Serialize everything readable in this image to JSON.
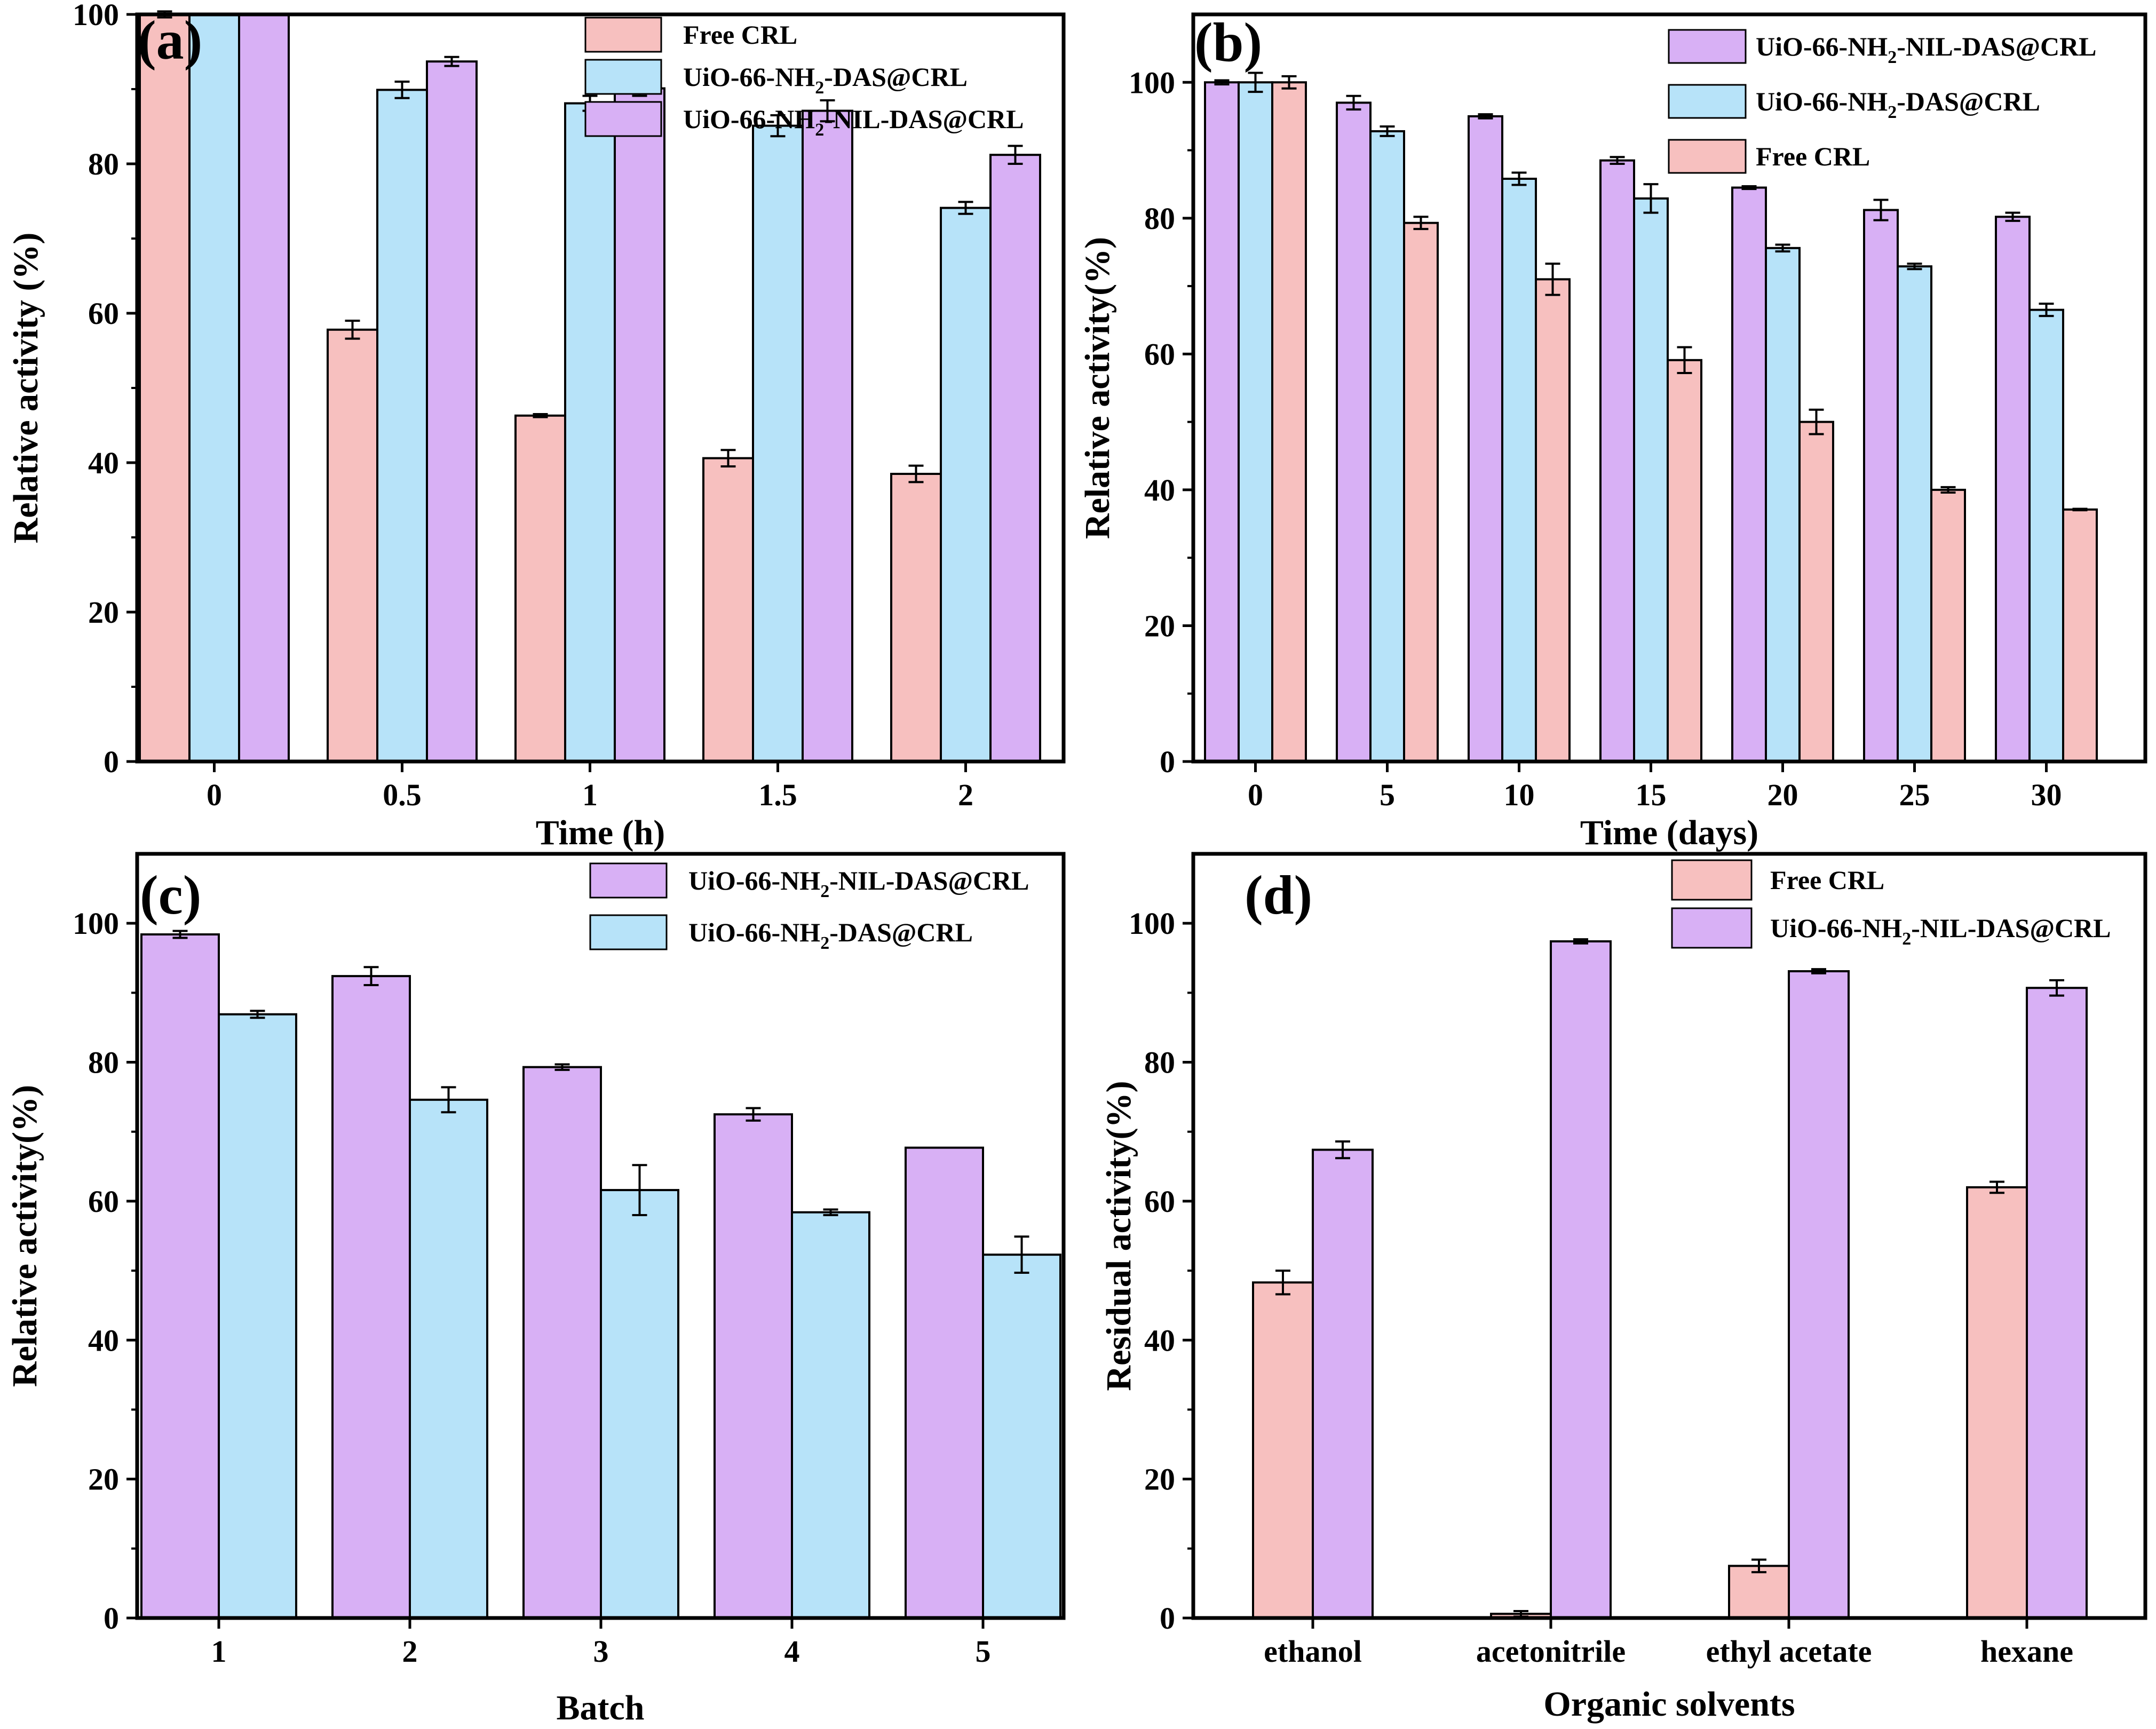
{
  "colors": {
    "Free CRL": "#f7c0bf",
    "UiO-66-NH2-DAS@CRL": "#b7e3f9",
    "UiO-66-NH2-NIL-DAS@CRL": "#d8b0f5"
  },
  "chart_data": [
    {
      "panel_label": "(a)",
      "type": "bar",
      "xlabel": "Time (h)",
      "ylabel": "Relative activity (%)",
      "ylim": [
        0,
        100
      ],
      "yticks": [
        "0",
        "20",
        "40",
        "60",
        "80",
        "100"
      ],
      "categories": [
        "0",
        "0.5",
        "1",
        "1.5",
        "2"
      ],
      "legend_position": "top-right",
      "series": [
        {
          "name": "Free CRL",
          "name_base": "Free CRL",
          "name_sub": "",
          "name_rest": "",
          "color_key": "Free CRL",
          "values": [
            100,
            57.8,
            46.3,
            40.6,
            38.5
          ],
          "errors": [
            0.4,
            1.2,
            0.2,
            1.1,
            1.1
          ]
        },
        {
          "name": "UiO-66-NH2-DAS@CRL",
          "name_base": "UiO-66-NH",
          "name_sub": "2",
          "name_rest": "-DAS@CRL",
          "color_key": "UiO-66-NH2-DAS@CRL",
          "values": [
            100,
            89.9,
            88.1,
            85.1,
            74.1
          ],
          "errors": [
            0,
            1.1,
            1.0,
            1.4,
            0.8
          ]
        },
        {
          "name": "UiO-66-NH2-NIL-DAS@CRL",
          "name_base": "UiO-66-NH",
          "name_sub": "2",
          "name_rest": "-NIL-DAS@CRL",
          "color_key": "UiO-66-NH2-NIL-DAS@CRL",
          "values": [
            100,
            93.7,
            90.1,
            87.1,
            81.2
          ],
          "errors": [
            0,
            0.6,
            1.0,
            1.4,
            1.2
          ]
        }
      ]
    },
    {
      "panel_label": "(b)",
      "type": "bar",
      "xlabel": "Time (days)",
      "ylabel": "Relative activity(%)",
      "ylim": [
        0,
        110
      ],
      "yticks": [
        "0",
        "20",
        "40",
        "60",
        "80",
        "100"
      ],
      "categories": [
        "0",
        "5",
        "10",
        "15",
        "20",
        "25",
        "30"
      ],
      "legend_position": "top-right",
      "series": [
        {
          "name": "UiO-66-NH2-NIL-DAS@CRL",
          "name_base": "UiO-66-NH",
          "name_sub": "2",
          "name_rest": "-NIL-DAS@CRL",
          "color_key": "UiO-66-NH2-NIL-DAS@CRL",
          "values": [
            100,
            97.0,
            95.0,
            88.5,
            84.5,
            81.2,
            80.2
          ],
          "errors": [
            0.3,
            1.0,
            0.3,
            0.5,
            0.2,
            1.5,
            0.6
          ]
        },
        {
          "name": "UiO-66-NH2-DAS@CRL",
          "name_base": "UiO-66-NH",
          "name_sub": "2",
          "name_rest": "-DAS@CRL",
          "color_key": "UiO-66-NH2-DAS@CRL",
          "values": [
            100,
            92.8,
            85.8,
            82.9,
            75.6,
            72.9,
            66.5
          ],
          "errors": [
            1.4,
            0.7,
            0.9,
            2.1,
            0.5,
            0.4,
            0.9
          ]
        },
        {
          "name": "Free CRL",
          "name_base": "Free CRL",
          "name_sub": "",
          "name_rest": "",
          "color_key": "Free CRL",
          "values": [
            100,
            79.3,
            71.0,
            59.1,
            50.0,
            40.0,
            37.1
          ],
          "errors": [
            0.9,
            0.9,
            2.3,
            1.9,
            1.8,
            0.4,
            0.1
          ]
        }
      ]
    },
    {
      "panel_label": "(c)",
      "type": "bar",
      "xlabel": "Batch",
      "ylabel": "Relative activity(%)",
      "ylim": [
        0,
        110
      ],
      "yticks": [
        "0",
        "20",
        "40",
        "60",
        "80",
        "100"
      ],
      "categories": [
        "1",
        "2",
        "3",
        "4",
        "5"
      ],
      "legend_position": "top-right",
      "series": [
        {
          "name": "UiO-66-NH2-NIL-DAS@CRL",
          "name_base": "UiO-66-NH",
          "name_sub": "2",
          "name_rest": "-NIL-DAS@CRL",
          "color_key": "UiO-66-NH2-NIL-DAS@CRL",
          "values": [
            98.4,
            92.4,
            79.3,
            72.5,
            67.7
          ],
          "errors": [
            0.5,
            1.3,
            0.4,
            0.9,
            0
          ]
        },
        {
          "name": "UiO-66-NH2-DAS@CRL",
          "name_base": "UiO-66-NH",
          "name_sub": "2",
          "name_rest": "-DAS@CRL",
          "color_key": "UiO-66-NH2-DAS@CRL",
          "values": [
            86.9,
            74.6,
            61.6,
            58.4,
            52.3
          ],
          "errors": [
            0.5,
            1.8,
            3.6,
            0.4,
            2.6
          ]
        }
      ]
    },
    {
      "panel_label": "(d)",
      "type": "bar",
      "xlabel": "Organic solvents",
      "ylabel": "Residual activity(%)",
      "ylim": [
        0,
        110
      ],
      "yticks": [
        "0",
        "20",
        "40",
        "60",
        "80",
        "100"
      ],
      "categories": [
        "ethanol",
        "acetonitrile",
        "ethyl acetate",
        "hexane"
      ],
      "legend_position": "top-right",
      "series": [
        {
          "name": "Free CRL",
          "name_base": "Free CRL",
          "name_sub": "",
          "name_rest": "",
          "color_key": "Free CRL",
          "values": [
            48.3,
            0.6,
            7.5,
            62.0
          ],
          "errors": [
            1.7,
            0.4,
            0.9,
            0.8
          ]
        },
        {
          "name": "UiO-66-NH2-NIL-DAS@CRL",
          "name_base": "UiO-66-NH",
          "name_sub": "2",
          "name_rest": "-NIL-DAS@CRL",
          "color_key": "UiO-66-NH2-NIL-DAS@CRL",
          "values": [
            67.4,
            97.4,
            93.1,
            90.7
          ],
          "errors": [
            1.2,
            0.3,
            0.3,
            1.1
          ]
        }
      ]
    }
  ]
}
